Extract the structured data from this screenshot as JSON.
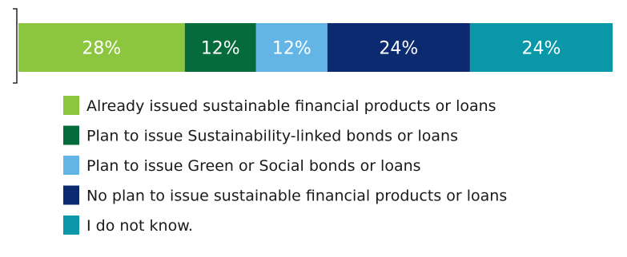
{
  "chart_data": {
    "type": "bar",
    "orientation": "horizontal-stacked-100",
    "categories": [
      ""
    ],
    "series": [
      {
        "name": "Already issued sustainable financial products or loans",
        "values": [
          28
        ],
        "label": "28%",
        "color": "#8cc63f"
      },
      {
        "name": "Plan to issue Sustainability-linked bonds or loans",
        "values": [
          12
        ],
        "label": "12%",
        "color": "#056b3a"
      },
      {
        "name": "Plan to issue Green or Social bonds or loans",
        "values": [
          12
        ],
        "label": "12%",
        "color": "#62b5e5"
      },
      {
        "name": "No plan to issue sustainable financial products or loans",
        "values": [
          24
        ],
        "label": "24%",
        "color": "#0b2a6f"
      },
      {
        "name": "I do not know.",
        "values": [
          24
        ],
        "label": "24%",
        "color": "#0a98a8"
      }
    ],
    "title": "",
    "xlabel": "",
    "ylabel": "",
    "xlim": [
      0,
      100
    ],
    "unit": "%",
    "grid": false,
    "legend_position": "bottom"
  }
}
